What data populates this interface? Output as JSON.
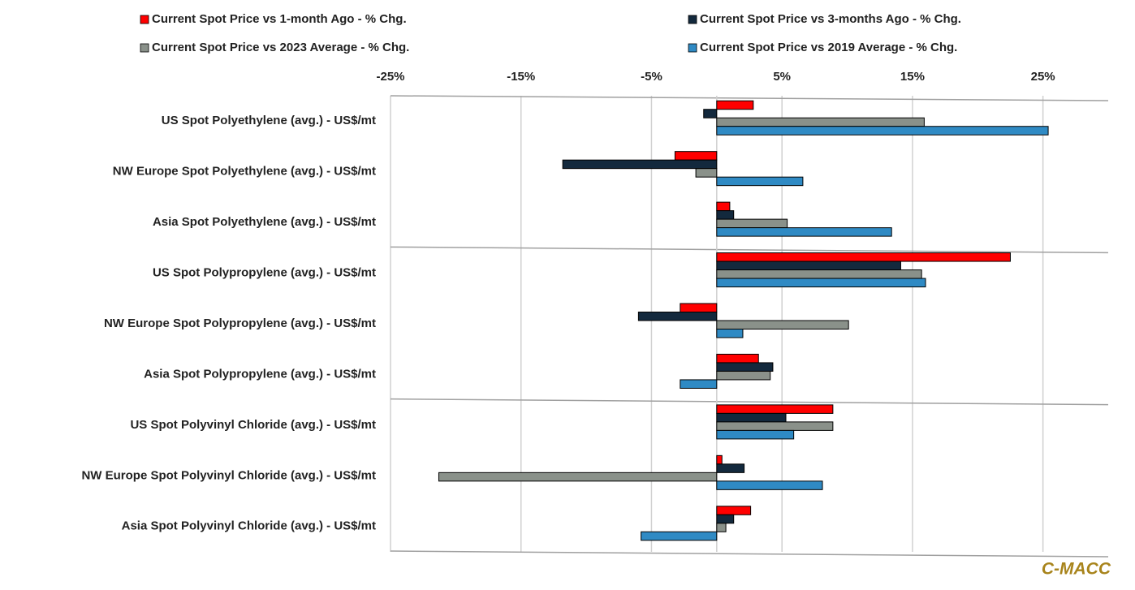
{
  "chart_data": {
    "type": "hbar",
    "categories": [
      "US Spot Polyethylene (avg.) - US$/mt",
      "NW Europe Spot Polyethylene (avg.) - US$/mt",
      "Asia Spot Polyethylene (avg.) - US$/mt",
      "US Spot Polypropylene (avg.) - US$/mt",
      "NW Europe Spot Polypropylene (avg.) - US$/mt",
      "Asia Spot Polypropylene (avg.) - US$/mt",
      "US Spot Polyvinyl Chloride (avg.) - US$/mt",
      "NW Europe Spot Polyvinyl Chloride (avg.)  - US$/mt",
      "Asia Spot Polyvinyl Chloride (avg.) - US$/mt"
    ],
    "series": [
      {
        "name": "Current Spot Price vs 1-month Ago - % Chg.",
        "color": "#ff0000",
        "values": [
          2.8,
          -3.2,
          1.0,
          22.5,
          -2.8,
          3.2,
          8.9,
          0.4,
          2.6
        ]
      },
      {
        "name": "Current Spot Price vs 3-months Ago - % Chg.",
        "color": "#13293d",
        "values": [
          -1.0,
          -11.8,
          1.3,
          14.1,
          -6.0,
          4.3,
          5.3,
          2.1,
          1.3
        ]
      },
      {
        "name": "Current Spot Price vs 2023 Average - % Chg.",
        "color": "#8a918a",
        "values": [
          15.9,
          -1.6,
          5.4,
          15.7,
          10.1,
          4.1,
          8.9,
          -21.3,
          0.7
        ]
      },
      {
        "name": "Current Spot Price vs 2019 Average - % Chg.",
        "color": "#2f8ac4",
        "values": [
          25.4,
          6.6,
          13.4,
          16.0,
          2.0,
          -2.8,
          5.9,
          8.1,
          -5.8
        ]
      }
    ],
    "xlim": [
      -25,
      30
    ],
    "xticks": [
      {
        "value": -25,
        "label": "-25%"
      },
      {
        "value": -15,
        "label": "-15%"
      },
      {
        "value": -5,
        "label": "-5%"
      },
      {
        "value": 5,
        "label": "5%"
      },
      {
        "value": 15,
        "label": "15%"
      },
      {
        "value": 25,
        "label": "25%"
      }
    ],
    "grid": true,
    "source": "C-MACC"
  }
}
